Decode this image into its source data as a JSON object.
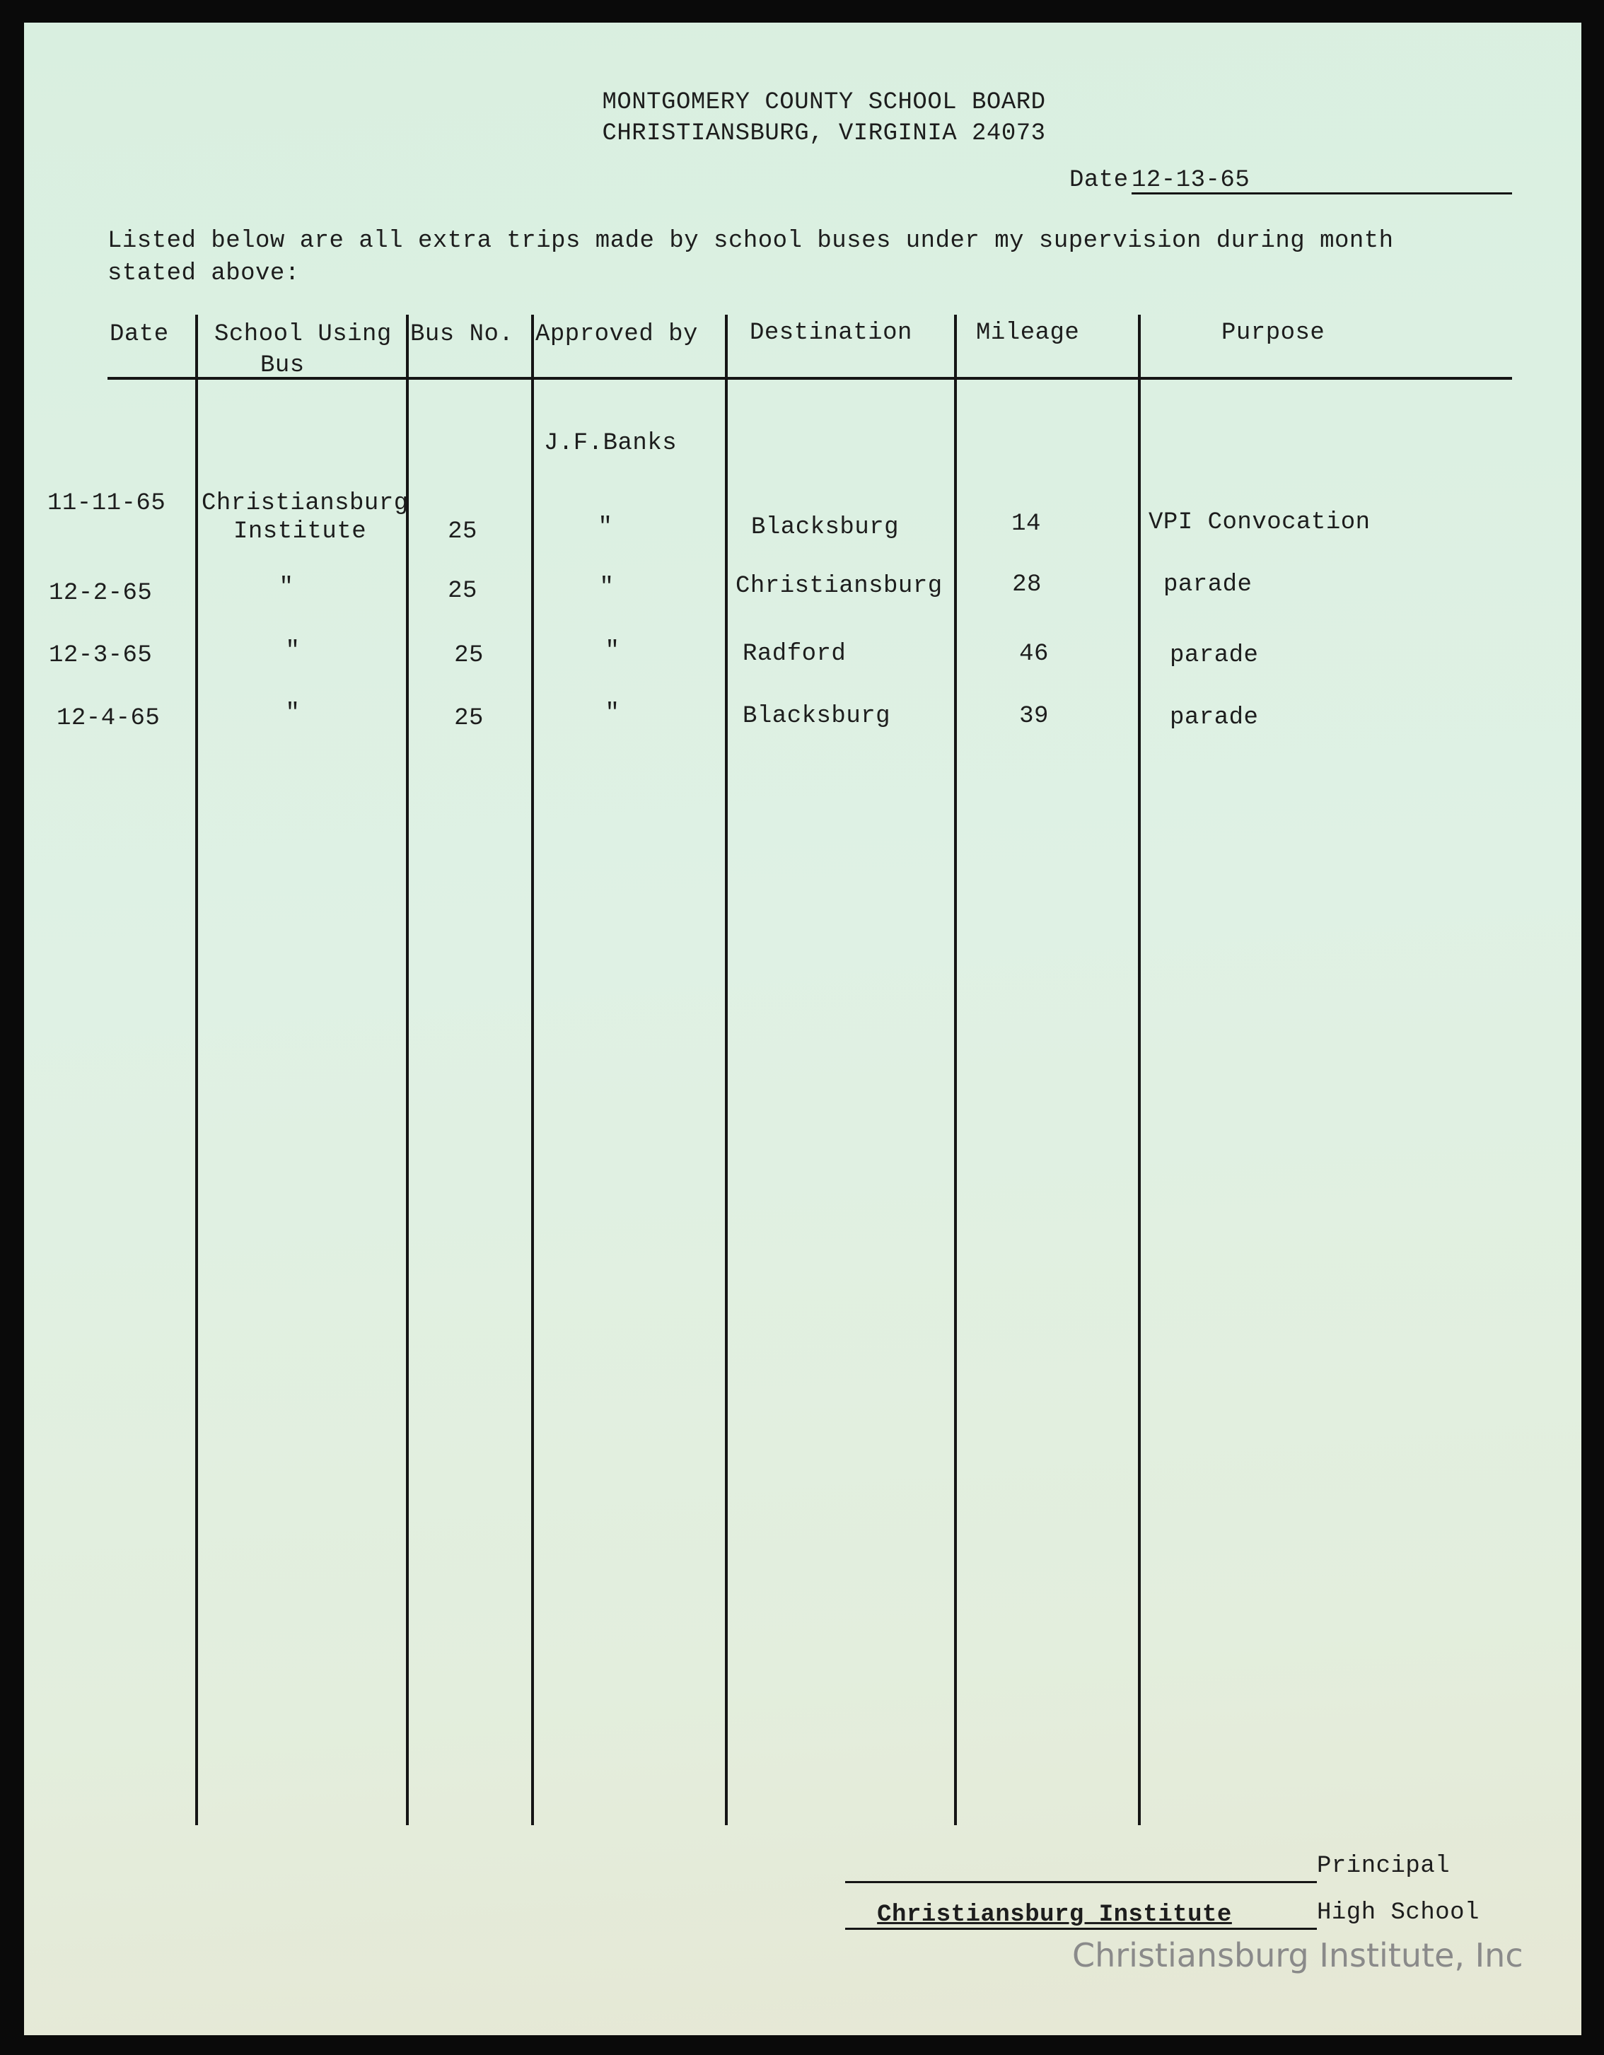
{
  "letterhead": {
    "line1": "MONTGOMERY COUNTY SCHOOL BOARD",
    "line2": "CHRISTIANSBURG, VIRGINIA 24073"
  },
  "date": {
    "label": "Date",
    "value": "12-13-65"
  },
  "intro": {
    "line1": "Listed below are all extra trips made by school buses under my supervision during month",
    "line2": "stated above:"
  },
  "table": {
    "headers": {
      "date": "Date",
      "school_line1": "School Using",
      "school_line2": "Bus",
      "bus_no": "Bus No.",
      "approved_by": "Approved by",
      "destination": "Destination",
      "mileage": "Mileage",
      "purpose": "Purpose"
    },
    "approver_note": "J.F.Banks",
    "rows": [
      {
        "date": "11-11-65",
        "school_line1": "Christiansburg",
        "school_line2": "Institute",
        "bus_no": "25",
        "approved_by": "\"",
        "destination": "Blacksburg",
        "mileage": "14",
        "purpose": "VPI Convocation"
      },
      {
        "date": "12-2-65",
        "school_line1": "\"",
        "school_line2": "",
        "bus_no": "25",
        "approved_by": "\"",
        "destination": "Christiansburg",
        "mileage": "28",
        "purpose": "parade"
      },
      {
        "date": "12-3-65",
        "school_line1": "\"",
        "school_line2": "",
        "bus_no": "25",
        "approved_by": "\"",
        "destination": "Radford",
        "mileage": "46",
        "purpose": "parade"
      },
      {
        "date": "12-4-65",
        "school_line1": "\"",
        "school_line2": "",
        "bus_no": "25",
        "approved_by": "\"",
        "destination": "Blacksburg",
        "mileage": "39",
        "purpose": "parade"
      }
    ]
  },
  "signature": {
    "principal_label": "Principal",
    "school_name": "Christiansburg Institute",
    "school_label": "High School"
  },
  "watermark": "Christiansburg Institute, Inc",
  "colors": {
    "paper": "#dff1e4",
    "ink": "#1d1d1d"
  }
}
